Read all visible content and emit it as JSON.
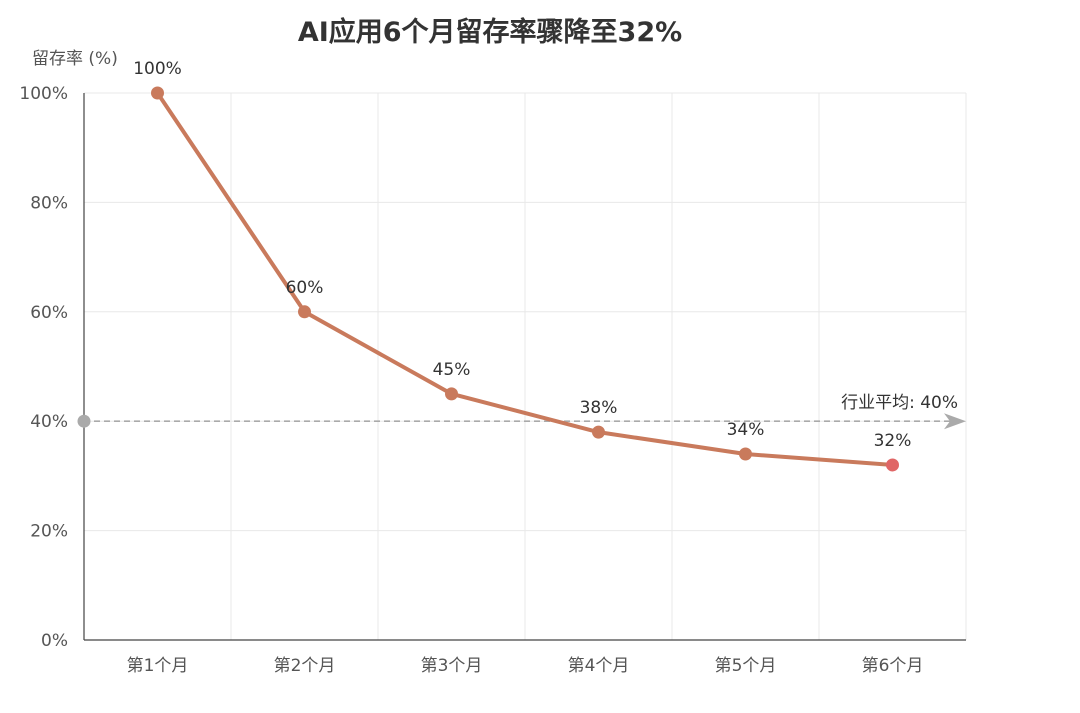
{
  "chart_data": {
    "type": "line",
    "title": "AI应用6个月留存率骤降至32%",
    "xlabel": "",
    "ylabel": "留存率 (%)",
    "categories": [
      "第1个月",
      "第2个月",
      "第3个月",
      "第4个月",
      "第5个月",
      "第6个月"
    ],
    "values": [
      100,
      60,
      45,
      38,
      34,
      32
    ],
    "data_labels": [
      "100%",
      "60%",
      "45%",
      "38%",
      "34%",
      "32%"
    ],
    "ylim": [
      0,
      100
    ],
    "yticks": [
      0,
      20,
      40,
      60,
      80,
      100
    ],
    "ytick_labels": [
      "0%",
      "20%",
      "40%",
      "60%",
      "80%",
      "100%"
    ],
    "grid": true,
    "reference_line": {
      "value": 40,
      "label": "行业平均: 40%"
    },
    "colors": {
      "line": "#c97a5c",
      "point": "#c97a5c",
      "last_point": "#e06666",
      "reference": "#aaaaaa",
      "grid": "#e8e8e8",
      "axis": "#444444"
    }
  }
}
